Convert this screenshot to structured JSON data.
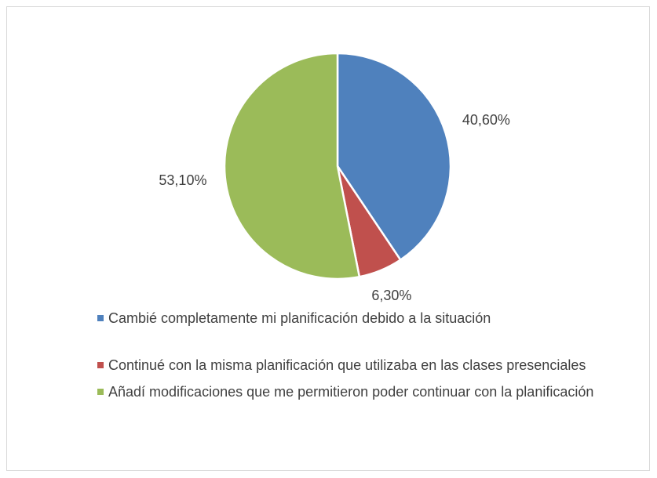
{
  "chart_data": {
    "type": "pie",
    "categories": [
      "Cambié completamente mi planificación debido a la situación",
      "Continué con la misma planificación que utilizaba en las clases presenciales",
      "Añadí modificaciones que me permitieron poder continuar con la planificación"
    ],
    "values": [
      40.6,
      6.3,
      53.1
    ],
    "value_labels": [
      "40,60%",
      "6,30%",
      "53,10%"
    ],
    "colors": [
      "#4f81bd",
      "#c0504d",
      "#9bbb59"
    ],
    "legend": "bottom"
  }
}
